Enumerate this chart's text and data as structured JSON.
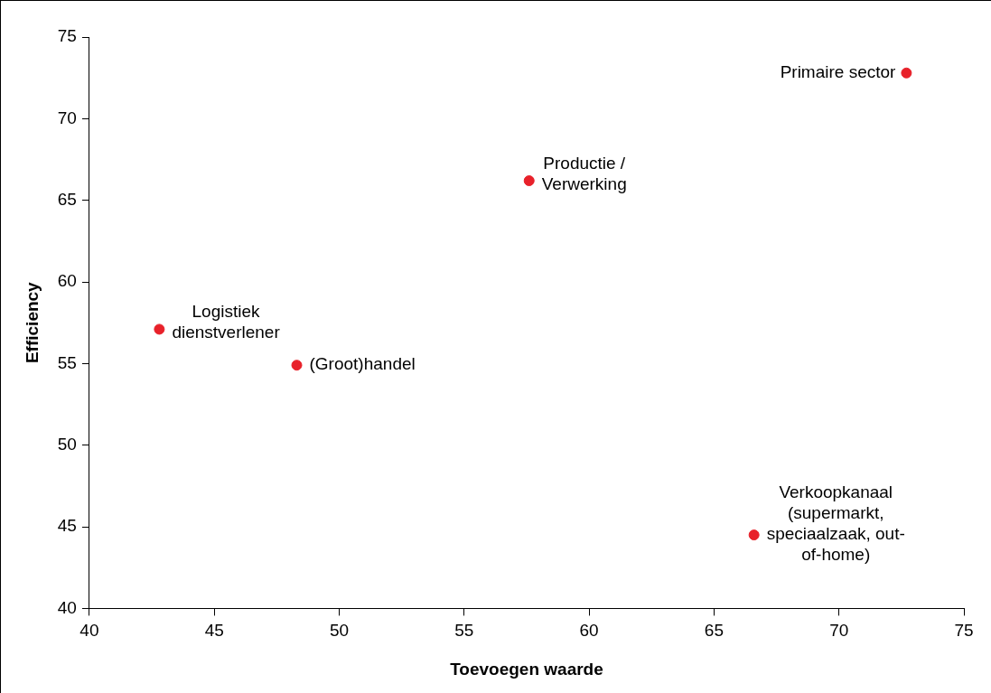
{
  "chart_data": {
    "type": "scatter",
    "xlabel": "Toevoegen waarde",
    "ylabel": "Efficiency",
    "x": [
      72.7,
      57.6,
      42.8,
      48.3,
      66.6
    ],
    "values": [
      72.8,
      66.2,
      57.1,
      54.9,
      44.5
    ],
    "color": "#e8212a",
    "marker": "circle",
    "grid": false,
    "legend": false,
    "xlim": [
      40,
      75
    ],
    "xticks": [
      40,
      45,
      50,
      55,
      60,
      65,
      70,
      75
    ],
    "ylim": [
      40,
      75
    ],
    "yticks": [
      40,
      45,
      50,
      55,
      60,
      65,
      70,
      75
    ],
    "annotations": [
      {
        "text": "Primaire sector",
        "x": 72.7,
        "y": 72.8
      },
      {
        "text": "Productie /\nVerwerking",
        "x": 57.6,
        "y": 66.2
      },
      {
        "text": "Logistiek\ndienstverlener",
        "x": 42.8,
        "y": 57.1
      },
      {
        "text": "(Groot)handel",
        "x": 48.3,
        "y": 54.9
      },
      {
        "text": "Verkoopkanaal\n(supermarkt,\nspeciaalzaak, out-\nof-home)",
        "x": 66.6,
        "y": 44.5
      }
    ]
  }
}
